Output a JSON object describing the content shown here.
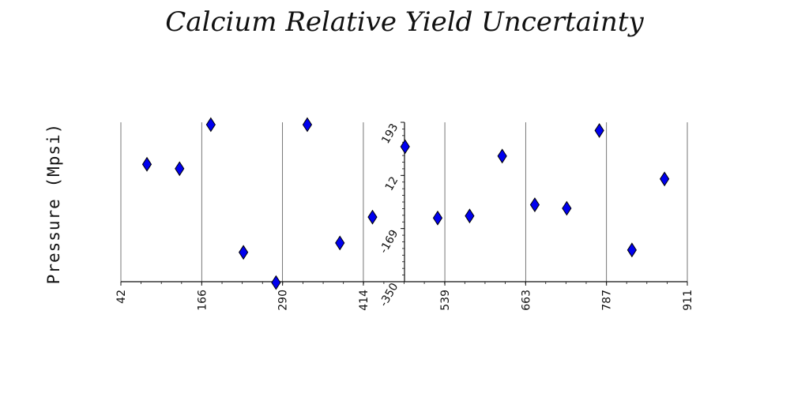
{
  "chart_data": {
    "type": "scatter",
    "title": "Calcium Relative Yield Uncertainty",
    "xlabel": "",
    "ylabel": "Pressure (Mpsi)",
    "xlim": [
      42,
      911
    ],
    "ylim": [
      -350,
      193
    ],
    "x_ticks": [
      "42",
      "166",
      "290",
      "414",
      "539",
      "663",
      "787",
      "911"
    ],
    "y_ticks": [
      "-350",
      "-169",
      "12",
      "193"
    ],
    "grid": "vertical lines only",
    "marker": "diamond",
    "marker_color": "#0000ee",
    "marker_edge": "#000000",
    "points": [
      {
        "x": 82,
        "y": 50
      },
      {
        "x": 132,
        "y": 35
      },
      {
        "x": 180,
        "y": 185
      },
      {
        "x": 230,
        "y": -250
      },
      {
        "x": 280,
        "y": -353
      },
      {
        "x": 328,
        "y": 185
      },
      {
        "x": 378,
        "y": -218
      },
      {
        "x": 428,
        "y": -130
      },
      {
        "x": 478,
        "y": 110
      },
      {
        "x": 528,
        "y": -133
      },
      {
        "x": 577,
        "y": -126
      },
      {
        "x": 627,
        "y": 78
      },
      {
        "x": 677,
        "y": -88
      },
      {
        "x": 726,
        "y": -100
      },
      {
        "x": 776,
        "y": 165
      },
      {
        "x": 826,
        "y": -242
      },
      {
        "x": 876,
        "y": 0
      }
    ]
  }
}
